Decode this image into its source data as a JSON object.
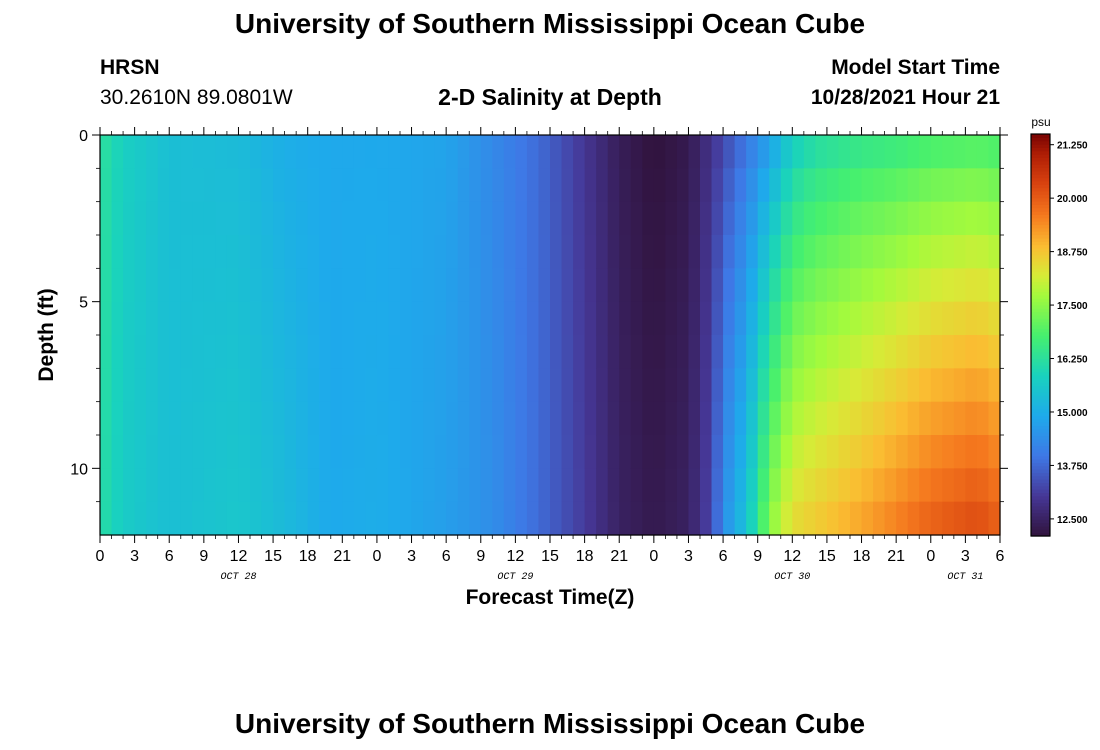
{
  "page": {
    "title_top": "University of Southern Mississippi Ocean Cube",
    "title_bottom": "University of Southern Mississippi Ocean Cube",
    "station_name": "HRSN",
    "station_coords": "30.2610N  89.0801W",
    "subtitle": "2-D Salinity at Depth",
    "start_label": "Model Start Time",
    "start_value": "10/28/2021 Hour 21"
  },
  "chart_data": {
    "type": "heatmap",
    "title": "2-D Salinity at Depth",
    "xlabel": "Forecast Time(Z)",
    "ylabel": "Depth (ft)",
    "y_inverted": true,
    "xlim_hours_from_oct28_00z": [
      0,
      78
    ],
    "ylim": [
      0,
      12
    ],
    "x_tick_labels": [
      "0",
      "3",
      "6",
      "9",
      "12",
      "15",
      "18",
      "21",
      "0",
      "3",
      "6",
      "9",
      "12",
      "15",
      "18",
      "21",
      "0",
      "3",
      "6",
      "9",
      "12",
      "15",
      "18",
      "21",
      "0",
      "3",
      "6"
    ],
    "x_tick_hours": [
      0,
      3,
      6,
      9,
      12,
      15,
      18,
      21,
      24,
      27,
      30,
      33,
      36,
      39,
      42,
      45,
      48,
      51,
      54,
      57,
      60,
      63,
      66,
      69,
      72,
      75,
      78
    ],
    "date_labels": [
      {
        "text": "OCT 28",
        "hour": 12
      },
      {
        "text": "OCT 29",
        "hour": 36
      },
      {
        "text": "OCT 30",
        "hour": 60
      },
      {
        "text": "OCT 31",
        "hour": 75
      }
    ],
    "y_ticks": [
      0,
      5,
      10
    ],
    "colorbar": {
      "unit": "psu",
      "min": 12.1,
      "max": 21.5,
      "tick_labels": [
        "21.250",
        "20.000",
        "18.750",
        "17.500",
        "16.250",
        "15.000",
        "13.750",
        "12.500"
      ],
      "tick_values": [
        21.25,
        20.0,
        18.75,
        17.5,
        16.25,
        15.0,
        13.75,
        12.5
      ]
    },
    "surface_salinity_by_hour": [
      [
        0,
        16.3
      ],
      [
        2,
        15.8
      ],
      [
        6,
        15.4
      ],
      [
        12,
        15.3
      ],
      [
        16,
        15.0
      ],
      [
        20,
        14.9
      ],
      [
        24,
        14.9
      ],
      [
        30,
        14.8
      ],
      [
        34,
        14.3
      ],
      [
        38,
        13.8
      ],
      [
        42,
        13.0
      ],
      [
        45,
        12.4
      ],
      [
        48,
        12.1
      ],
      [
        51,
        12.3
      ],
      [
        53,
        12.9
      ],
      [
        56,
        13.9
      ],
      [
        58,
        14.6
      ],
      [
        60,
        15.6
      ],
      [
        62,
        16.0
      ],
      [
        66,
        16.3
      ],
      [
        69,
        16.4
      ],
      [
        72,
        16.6
      ],
      [
        76,
        16.7
      ],
      [
        78,
        16.6
      ]
    ],
    "bottom_salinity_by_hour": [
      [
        0,
        16.2
      ],
      [
        2,
        15.7
      ],
      [
        6,
        15.4
      ],
      [
        12,
        15.6
      ],
      [
        16,
        15.3
      ],
      [
        20,
        14.9
      ],
      [
        24,
        15.0
      ],
      [
        30,
        14.7
      ],
      [
        34,
        14.4
      ],
      [
        38,
        13.8
      ],
      [
        42,
        13.1
      ],
      [
        45,
        12.5
      ],
      [
        48,
        12.3
      ],
      [
        51,
        12.5
      ],
      [
        53,
        13.3
      ],
      [
        54,
        14.4
      ],
      [
        56,
        15.5
      ],
      [
        57,
        16.4
      ],
      [
        58,
        17.5
      ],
      [
        60,
        18.5
      ],
      [
        66,
        19.2
      ],
      [
        72,
        20.0
      ],
      [
        76,
        20.3
      ],
      [
        78,
        20.0
      ]
    ]
  }
}
